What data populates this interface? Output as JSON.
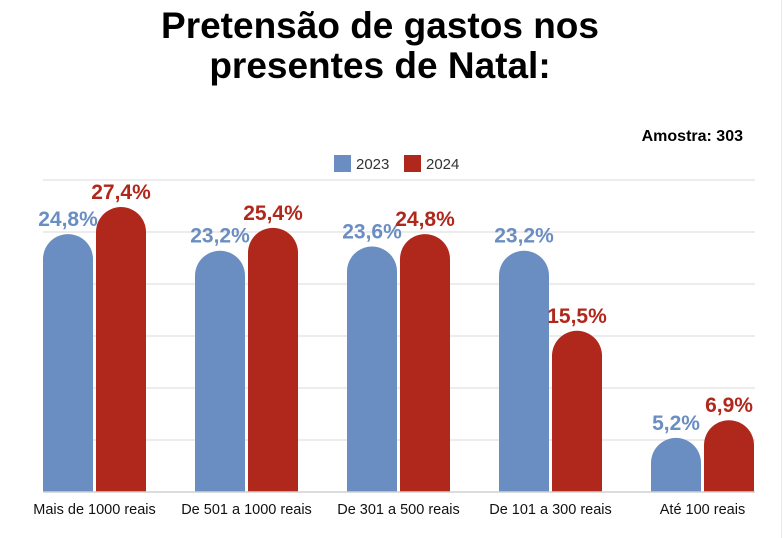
{
  "title_lines": [
    "Pretensão de gastos nos",
    "presentes de Natal:"
  ],
  "sample_label": "Amostra: 303",
  "colors": {
    "2023": "#6a8dc2",
    "2024": "#b0281c",
    "grid": "#e6e6e6",
    "axis": "#d0d0d0"
  },
  "chart_data": {
    "type": "bar",
    "title": "Pretensão de gastos nos presentes de Natal:",
    "subtitle": "Amostra: 303",
    "categories": [
      "Mais de 1000 reais",
      "De 501 a 1000 reais",
      "De 301 a 500 reais",
      "De 101 a 300 reais",
      "Até 100 reais"
    ],
    "series": [
      {
        "name": "2023",
        "values": [
          24.8,
          23.2,
          23.6,
          23.2,
          5.2
        ],
        "labels": [
          "24,8%",
          "23,2%",
          "23,6%",
          "23,2%",
          "5,2%"
        ]
      },
      {
        "name": "2024",
        "values": [
          27.4,
          25.4,
          24.8,
          15.5,
          6.9
        ],
        "labels": [
          "27,4%",
          "25,4%",
          "24,8%",
          "15,5%",
          "6,9%"
        ]
      }
    ],
    "xlabel": "",
    "ylabel": "",
    "ylim": [
      0,
      30
    ],
    "grid": true,
    "legend": "top-center",
    "unit": "%"
  }
}
